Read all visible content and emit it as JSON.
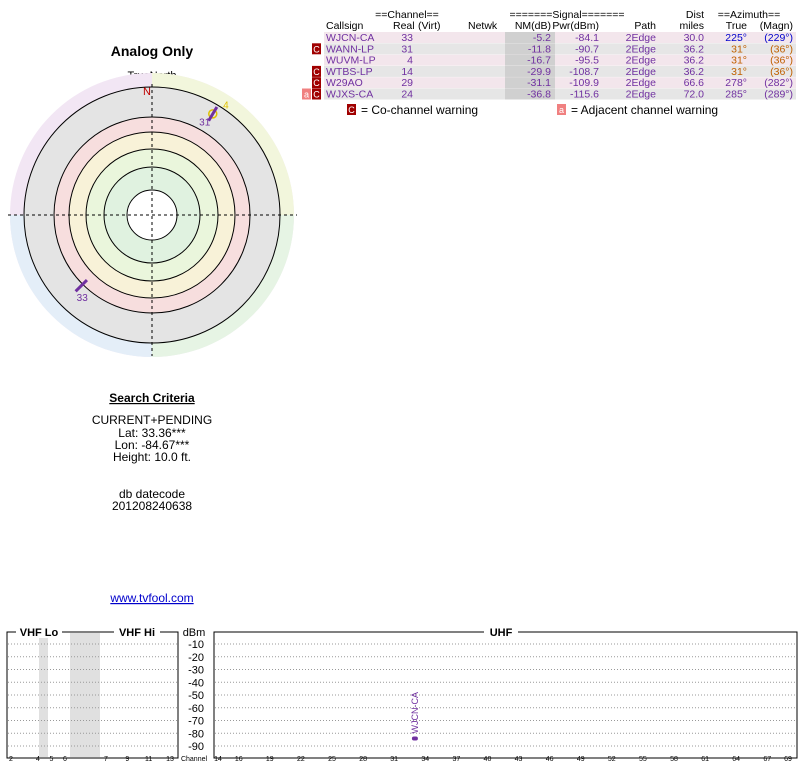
{
  "polar": {
    "title": "Analog Only",
    "north_label": "TrueNorth",
    "north_mark": "N",
    "markers": [
      {
        "label": "4",
        "azimuth": 31,
        "color": "#e0c000"
      },
      {
        "label": "31",
        "azimuth": 31,
        "color": "#7030a0"
      },
      {
        "label": "33",
        "azimuth": 225,
        "color": "#7030a0"
      }
    ]
  },
  "search": {
    "title": "Search Criteria",
    "lines": [
      "CURRENT+PENDING",
      "Lat: 33.36***",
      "Lon: -84.67***",
      "Height: 10.0 ft."
    ],
    "datecode_label": "db datecode",
    "datecode": "201208240638",
    "link": "www.tvfool.com"
  },
  "table": {
    "group_headers": [
      "==Channel==",
      "=======Signal=======",
      "Dist",
      "==Azimuth=="
    ],
    "headers": [
      "Callsign",
      "Real",
      "(Virt)",
      "Netwk",
      "NM(dB)",
      "Pwr(dBm)",
      "Path",
      "miles",
      "True",
      "(Magn)"
    ],
    "rows": [
      {
        "warnings": [],
        "callsign": "WJCN-CA",
        "real": "33",
        "nm": "-5.2",
        "pwr": "-84.1",
        "path": "2Edge",
        "dist": "30.0",
        "true": "225°",
        "magn": "(229°)",
        "azimuth_color": "#0000cc"
      },
      {
        "warnings": [
          "C"
        ],
        "callsign": "WANN-LP",
        "real": "31",
        "nm": "-11.8",
        "pwr": "-90.7",
        "path": "2Edge",
        "dist": "36.2",
        "true": "31°",
        "magn": "(36°)",
        "azimuth_color": "#c06000"
      },
      {
        "warnings": [],
        "callsign": "WUVM-LP",
        "real": "4",
        "nm": "-16.7",
        "pwr": "-95.5",
        "path": "2Edge",
        "dist": "36.2",
        "true": "31°",
        "magn": "(36°)",
        "azimuth_color": "#c06000"
      },
      {
        "warnings": [
          "C"
        ],
        "callsign": "WTBS-LP",
        "real": "14",
        "nm": "-29.9",
        "pwr": "-108.7",
        "path": "2Edge",
        "dist": "36.2",
        "true": "31°",
        "magn": "(36°)",
        "azimuth_color": "#c06000"
      },
      {
        "warnings": [
          "C"
        ],
        "callsign": "W29AO",
        "real": "29",
        "nm": "-31.1",
        "pwr": "-109.9",
        "path": "2Edge",
        "dist": "66.6",
        "true": "278°",
        "magn": "(282°)",
        "azimuth_color": "#7030a0"
      },
      {
        "warnings": [
          "a",
          "C"
        ],
        "callsign": "WJXS-CA",
        "real": "24",
        "nm": "-36.8",
        "pwr": "-115.6",
        "path": "2Edge",
        "dist": "72.0",
        "true": "285°",
        "magn": "(289°)",
        "azimuth_color": "#7030a0"
      }
    ],
    "legend": [
      {
        "box": "C",
        "text": "= Co-channel warning"
      },
      {
        "box": "a",
        "text": "= Adjacent channel warning"
      }
    ]
  },
  "spectrum": {
    "vhf_lo_label": "VHF Lo",
    "vhf_hi_label": "VHF Hi",
    "uhf_label": "UHF",
    "unit_label": "dBm",
    "channel_label": "Channel",
    "ylim": [
      -100,
      0
    ],
    "yticks": [
      -10,
      -20,
      -30,
      -40,
      -50,
      -60,
      -70,
      -80,
      -90
    ],
    "vhf_lo_xlim": [
      2,
      6
    ],
    "vhf_lo_ticks": [
      2,
      4,
      5,
      6
    ],
    "vhf_hi_xlim": [
      7,
      13
    ],
    "vhf_hi_ticks": [
      7,
      9,
      11,
      13
    ],
    "uhf_xlim": [
      14,
      69
    ],
    "uhf_ticks": [
      14,
      16,
      19,
      22,
      25,
      28,
      31,
      34,
      37,
      40,
      43,
      46,
      49,
      52,
      55,
      58,
      61,
      64,
      67,
      69
    ],
    "bars": [
      {
        "label": "WJCN-CA",
        "channel": 33,
        "value": -84.1,
        "color": "#7030a0"
      }
    ]
  }
}
